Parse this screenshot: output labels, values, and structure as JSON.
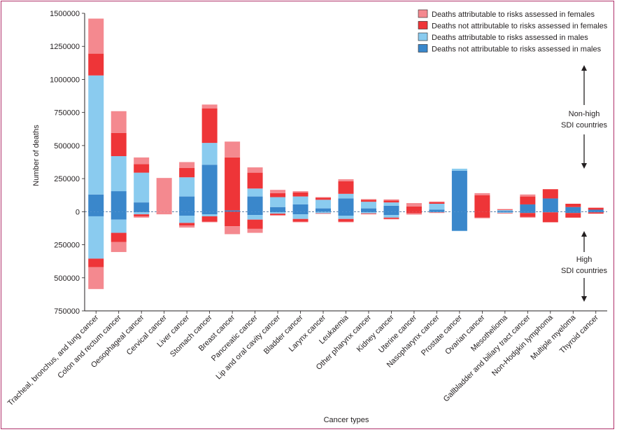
{
  "chart_data": {
    "type": "bar",
    "ylabel": "Number of deaths",
    "xlabel": "Cancer types",
    "ylim": [
      -750000,
      1500000
    ],
    "yticks": [
      {
        "value": 1500000,
        "label": "1500000"
      },
      {
        "value": 1250000,
        "label": "1250000"
      },
      {
        "value": 1000000,
        "label": "1000000"
      },
      {
        "value": 750000,
        "label": "750000"
      },
      {
        "value": 500000,
        "label": "500000"
      },
      {
        "value": 250000,
        "label": "250000"
      },
      {
        "value": 0,
        "label": "0"
      },
      {
        "value": -250000,
        "label": "250000"
      },
      {
        "value": -500000,
        "label": "500000"
      },
      {
        "value": -750000,
        "label": "750000"
      }
    ],
    "categories": [
      "Tracheal, bronchus, and lung cancer",
      "Colon and rectum cancer",
      "Oesophageal cancer",
      "Cervical cancer",
      "Liver cancer",
      "Stomach cancer",
      "Breast cancer",
      "Pancreatic cancer",
      "Lip and oral cavity cancer",
      "Bladder cancer",
      "Larynx cancer",
      "Leukaemia",
      "Other pharynx cancer",
      "Kidney cancer",
      "Uterine cancer",
      "Nasopharynx cancer",
      "Prostate cancer",
      "Ovarian cancer",
      "Mesothelioma",
      "Gallbladder and biliary tract cancer",
      "Non-Hodgkin lymphoma",
      "Multiple myeloma",
      "Thyroid cancer"
    ],
    "stack_order_outward": [
      "Deaths not attributable to risks assessed in males",
      "Deaths attributable to risks assessed in males",
      "Deaths not attributable to risks assessed in females",
      "Deaths attributable to risks assessed in females"
    ],
    "legend_position": "top-right",
    "series": [
      {
        "name": "Deaths attributable to risks assessed in females",
        "color": "#f4898f",
        "non_high": [
          265000,
          165000,
          50000,
          255000,
          45000,
          30000,
          120000,
          40000,
          25000,
          10000,
          5000,
          15000,
          5000,
          8000,
          25000,
          5000,
          0,
          15000,
          4000,
          15000,
          0,
          0,
          0
        ],
        "high": [
          165000,
          75000,
          10000,
          20000,
          15000,
          5000,
          60000,
          30000,
          5000,
          5000,
          2000,
          5000,
          2000,
          3000,
          10000,
          2000,
          0,
          5000,
          2000,
          5000,
          0,
          0,
          0
        ]
      },
      {
        "name": "Deaths not attributable to risks assessed in females",
        "color": "#ee3538",
        "non_high": [
          165000,
          175000,
          65000,
          0,
          70000,
          260000,
          400000,
          120000,
          30000,
          30000,
          15000,
          95000,
          15000,
          15000,
          40000,
          12000,
          0,
          125000,
          4000,
          60000,
          70000,
          25000,
          15000
        ],
        "high": [
          65000,
          70000,
          15000,
          0,
          20000,
          40000,
          110000,
          70000,
          10000,
          20000,
          3000,
          20000,
          5000,
          10000,
          12000,
          3000,
          0,
          45000,
          3000,
          30000,
          75000,
          35000,
          10000
        ]
      },
      {
        "name": "Deaths attributable to risks assessed in males",
        "color": "#8acbef",
        "non_high": [
          900000,
          265000,
          225000,
          0,
          145000,
          165000,
          0,
          60000,
          75000,
          60000,
          65000,
          35000,
          50000,
          25000,
          0,
          45000,
          15000,
          0,
          6000,
          0,
          0,
          0,
          0
        ],
        "high": [
          320000,
          100000,
          15000,
          0,
          55000,
          15000,
          0,
          35000,
          10000,
          35000,
          10000,
          25000,
          8000,
          20000,
          0,
          2000,
          2000,
          0,
          5000,
          0,
          0,
          0,
          0
        ]
      },
      {
        "name": "Deaths not attributable to risks assessed in males",
        "color": "#3a87cb",
        "non_high": [
          130000,
          155000,
          70000,
          0,
          115000,
          355000,
          10000,
          115000,
          35000,
          55000,
          25000,
          100000,
          25000,
          45000,
          0,
          15000,
          310000,
          0,
          6000,
          55000,
          100000,
          35000,
          15000
        ],
        "high": [
          35000,
          60000,
          5000,
          0,
          30000,
          20000,
          0,
          25000,
          5000,
          20000,
          2000,
          30000,
          5000,
          25000,
          0,
          3000,
          145000,
          0,
          5000,
          10000,
          5000,
          10000,
          5000
        ]
      }
    ],
    "annotations": {
      "upper": [
        "Non-high",
        "SDI countries"
      ],
      "lower": [
        "High",
        "SDI countries"
      ]
    }
  }
}
